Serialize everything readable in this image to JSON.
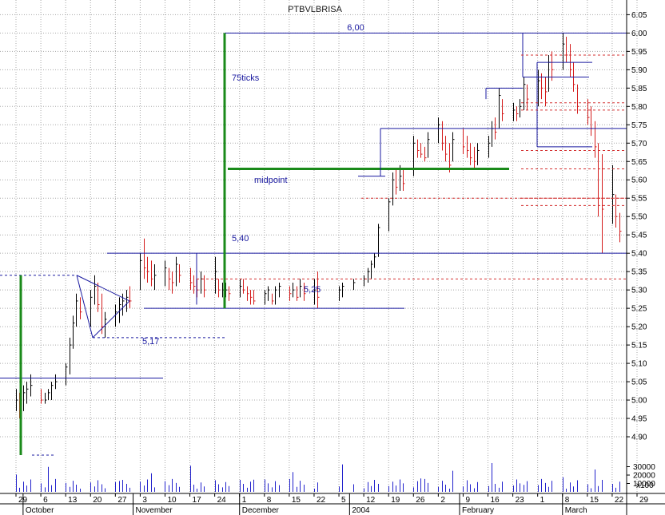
{
  "chart_data": {
    "type": "ohlc",
    "title": "PTBVLBRISA",
    "y_axis": {
      "ylim": [
        4.85,
        6.09
      ],
      "ticks": [
        "6.05",
        "6.00",
        "5.95",
        "5.90",
        "5.85",
        "5.80",
        "5.75",
        "5.70",
        "5.65",
        "5.60",
        "5.55",
        "5.50",
        "5.45",
        "5.40",
        "5.35",
        "5.30",
        "5.25",
        "5.20",
        "5.15",
        "5.10",
        "5.05",
        "5.00",
        "4.95",
        "4.90"
      ]
    },
    "volume_axis": {
      "ticks": [
        "30000",
        "20000",
        "10000"
      ],
      "unit_label": "x100"
    },
    "x_axis": {
      "day_ticks": [
        "29",
        "6",
        "13",
        "20",
        "27",
        "3",
        "10",
        "17",
        "24",
        "1",
        "8",
        "15",
        "22",
        "5",
        "12",
        "19",
        "26",
        "2",
        "9",
        "16",
        "23",
        "1",
        "8",
        "15",
        "22",
        "29"
      ],
      "month_labels": [
        "October",
        "November",
        "December",
        "2004",
        "February",
        "March"
      ]
    },
    "prices": [
      {
        "date": "2003-09-29",
        "high": 5.03,
        "low": 4.97,
        "close": 5.0
      },
      {
        "date": "2003-09-30",
        "high": 5.02,
        "low": 4.95,
        "close": 4.98
      },
      {
        "date": "2003-10-01",
        "high": 5.04,
        "low": 4.97,
        "close": 5.02
      },
      {
        "date": "2003-10-02",
        "high": 5.05,
        "low": 4.99,
        "close": 5.03
      },
      {
        "date": "2003-10-03",
        "high": 5.07,
        "low": 5.01,
        "close": 5.04
      },
      {
        "date": "2003-10-06",
        "high": 5.03,
        "low": 4.99,
        "close": 5.0
      },
      {
        "date": "2003-10-07",
        "high": 5.02,
        "low": 4.99,
        "close": 5.0
      },
      {
        "date": "2003-10-08",
        "high": 5.03,
        "low": 5.0,
        "close": 5.02
      },
      {
        "date": "2003-10-09",
        "high": 5.05,
        "low": 5.0,
        "close": 5.04
      },
      {
        "date": "2003-10-10",
        "high": 5.07,
        "low": 5.03,
        "close": 5.05
      },
      {
        "date": "2003-10-13",
        "high": 5.1,
        "low": 5.04,
        "close": 5.09
      },
      {
        "date": "2003-10-14",
        "high": 5.17,
        "low": 5.07,
        "close": 5.15
      },
      {
        "date": "2003-10-15",
        "high": 5.23,
        "low": 5.14,
        "close": 5.21
      },
      {
        "date": "2003-10-16",
        "high": 5.29,
        "low": 5.2,
        "close": 5.27
      },
      {
        "date": "2003-10-17",
        "high": 5.28,
        "low": 5.22,
        "close": 5.24
      },
      {
        "date": "2003-10-20",
        "high": 5.3,
        "low": 5.2,
        "close": 5.28
      },
      {
        "date": "2003-10-21",
        "high": 5.34,
        "low": 5.26,
        "close": 5.31
      },
      {
        "date": "2003-10-22",
        "high": 5.32,
        "low": 5.24,
        "close": 5.26
      },
      {
        "date": "2003-10-23",
        "high": 5.29,
        "low": 5.18,
        "close": 5.2
      },
      {
        "date": "2003-10-24",
        "high": 5.24,
        "low": 5.17,
        "close": 5.22
      },
      {
        "date": "2003-10-27",
        "high": 5.26,
        "low": 5.2,
        "close": 5.24
      },
      {
        "date": "2003-10-28",
        "high": 5.28,
        "low": 5.21,
        "close": 5.26
      },
      {
        "date": "2003-10-29",
        "high": 5.29,
        "low": 5.23,
        "close": 5.27
      },
      {
        "date": "2003-10-30",
        "high": 5.3,
        "low": 5.24,
        "close": 5.28
      },
      {
        "date": "2003-10-31",
        "high": 5.31,
        "low": 5.25,
        "close": 5.27
      },
      {
        "date": "2003-11-03",
        "high": 5.4,
        "low": 5.3,
        "close": 5.38
      },
      {
        "date": "2003-11-04",
        "high": 5.44,
        "low": 5.33,
        "close": 5.36
      },
      {
        "date": "2003-11-05",
        "high": 5.39,
        "low": 5.32,
        "close": 5.35
      },
      {
        "date": "2003-11-06",
        "high": 5.38,
        "low": 5.31,
        "close": 5.33
      },
      {
        "date": "2003-11-07",
        "high": 5.37,
        "low": 5.3,
        "close": 5.34
      },
      {
        "date": "2003-11-10",
        "high": 5.38,
        "low": 5.31,
        "close": 5.36
      },
      {
        "date": "2003-11-11",
        "high": 5.36,
        "low": 5.3,
        "close": 5.33
      },
      {
        "date": "2003-11-12",
        "high": 5.35,
        "low": 5.29,
        "close": 5.32
      },
      {
        "date": "2003-11-13",
        "high": 5.39,
        "low": 5.31,
        "close": 5.37
      },
      {
        "date": "2003-11-14",
        "high": 5.37,
        "low": 5.32,
        "close": 5.34
      },
      {
        "date": "2003-11-17",
        "high": 5.36,
        "low": 5.3,
        "close": 5.32
      },
      {
        "date": "2003-11-18",
        "high": 5.34,
        "low": 5.29,
        "close": 5.31
      },
      {
        "date": "2003-11-19",
        "high": 5.33,
        "low": 5.28,
        "close": 5.3
      },
      {
        "date": "2003-11-20",
        "high": 5.35,
        "low": 5.29,
        "close": 5.33
      },
      {
        "date": "2003-11-21",
        "high": 5.34,
        "low": 5.28,
        "close": 5.3
      },
      {
        "date": "2003-11-24",
        "high": 5.39,
        "low": 5.29,
        "close": 5.35
      },
      {
        "date": "2003-11-25",
        "high": 5.33,
        "low": 5.28,
        "close": 5.3
      },
      {
        "date": "2003-11-26",
        "high": 5.32,
        "low": 5.28,
        "close": 5.3
      },
      {
        "date": "2003-11-27",
        "high": 5.32,
        "low": 5.28,
        "close": 5.3
      },
      {
        "date": "2003-11-28",
        "high": 5.31,
        "low": 5.27,
        "close": 5.29
      },
      {
        "date": "2003-12-01",
        "high": 5.33,
        "low": 5.28,
        "close": 5.31
      },
      {
        "date": "2003-12-02",
        "high": 5.33,
        "low": 5.29,
        "close": 5.3
      },
      {
        "date": "2003-12-03",
        "high": 5.31,
        "low": 5.27,
        "close": 5.29
      },
      {
        "date": "2003-12-04",
        "high": 5.3,
        "low": 5.26,
        "close": 5.28
      },
      {
        "date": "2003-12-05",
        "high": 5.3,
        "low": 5.26,
        "close": 5.27
      },
      {
        "date": "2003-12-08",
        "high": 5.3,
        "low": 5.26,
        "close": 5.29
      },
      {
        "date": "2003-12-09",
        "high": 5.31,
        "low": 5.27,
        "close": 5.3
      },
      {
        "date": "2003-12-10",
        "high": 5.29,
        "low": 5.26,
        "close": 5.27
      },
      {
        "date": "2003-12-11",
        "high": 5.31,
        "low": 5.26,
        "close": 5.3
      },
      {
        "date": "2003-12-12",
        "high": 5.32,
        "low": 5.28,
        "close": 5.31
      },
      {
        "date": "2003-12-15",
        "high": 5.31,
        "low": 5.27,
        "close": 5.29
      },
      {
        "date": "2003-12-16",
        "high": 5.32,
        "low": 5.28,
        "close": 5.3
      },
      {
        "date": "2003-12-17",
        "high": 5.31,
        "low": 5.27,
        "close": 5.28
      },
      {
        "date": "2003-12-18",
        "high": 5.33,
        "low": 5.28,
        "close": 5.31
      },
      {
        "date": "2003-12-19",
        "high": 5.32,
        "low": 5.27,
        "close": 5.29
      },
      {
        "date": "2003-12-22",
        "high": 5.33,
        "low": 5.26,
        "close": 5.3
      },
      {
        "date": "2003-12-23",
        "high": 5.35,
        "low": 5.25,
        "close": 5.28
      },
      {
        "date": "2003-12-29",
        "high": 5.31,
        "low": 5.27,
        "close": 5.3
      },
      {
        "date": "2003-12-30",
        "high": 5.32,
        "low": 5.28,
        "close": 5.31
      },
      {
        "date": "2004-01-02",
        "high": 5.33,
        "low": 5.3,
        "close": 5.32
      },
      {
        "date": "2004-01-05",
        "high": 5.34,
        "low": 5.31,
        "close": 5.33
      },
      {
        "date": "2004-01-06",
        "high": 5.36,
        "low": 5.32,
        "close": 5.35
      },
      {
        "date": "2004-01-07",
        "high": 5.38,
        "low": 5.33,
        "close": 5.37
      },
      {
        "date": "2004-01-08",
        "high": 5.4,
        "low": 5.36,
        "close": 5.39
      },
      {
        "date": "2004-01-09",
        "high": 5.48,
        "low": 5.39,
        "close": 5.47
      },
      {
        "date": "2004-01-12",
        "high": 5.55,
        "low": 5.46,
        "close": 5.54
      },
      {
        "date": "2004-01-13",
        "high": 5.62,
        "low": 5.53,
        "close": 5.6
      },
      {
        "date": "2004-01-14",
        "high": 5.63,
        "low": 5.56,
        "close": 5.58
      },
      {
        "date": "2004-01-15",
        "high": 5.64,
        "low": 5.57,
        "close": 5.61
      },
      {
        "date": "2004-01-16",
        "high": 5.63,
        "low": 5.57,
        "close": 5.59
      },
      {
        "date": "2004-01-19",
        "high": 5.72,
        "low": 5.61,
        "close": 5.7
      },
      {
        "date": "2004-01-20",
        "high": 5.71,
        "low": 5.66,
        "close": 5.68
      },
      {
        "date": "2004-01-21",
        "high": 5.7,
        "low": 5.66,
        "close": 5.67
      },
      {
        "date": "2004-01-22",
        "high": 5.69,
        "low": 5.65,
        "close": 5.66
      },
      {
        "date": "2004-01-23",
        "high": 5.73,
        "low": 5.66,
        "close": 5.71
      },
      {
        "date": "2004-01-26",
        "high": 5.77,
        "low": 5.7,
        "close": 5.75
      },
      {
        "date": "2004-01-27",
        "high": 5.76,
        "low": 5.68,
        "close": 5.7
      },
      {
        "date": "2004-01-28",
        "high": 5.72,
        "low": 5.65,
        "close": 5.67
      },
      {
        "date": "2004-01-29",
        "high": 5.7,
        "low": 5.62,
        "close": 5.64
      },
      {
        "date": "2004-01-30",
        "high": 5.73,
        "low": 5.65,
        "close": 5.71
      },
      {
        "date": "2004-02-02",
        "high": 5.74,
        "low": 5.67,
        "close": 5.69
      },
      {
        "date": "2004-02-03",
        "high": 5.72,
        "low": 5.66,
        "close": 5.68
      },
      {
        "date": "2004-02-04",
        "high": 5.7,
        "low": 5.64,
        "close": 5.66
      },
      {
        "date": "2004-02-05",
        "high": 5.69,
        "low": 5.63,
        "close": 5.65
      },
      {
        "date": "2004-02-06",
        "high": 5.7,
        "low": 5.64,
        "close": 5.68
      },
      {
        "date": "2004-02-09",
        "high": 5.72,
        "low": 5.66,
        "close": 5.7
      },
      {
        "date": "2004-02-10",
        "high": 5.76,
        "low": 5.69,
        "close": 5.74
      },
      {
        "date": "2004-02-11",
        "high": 5.77,
        "low": 5.71,
        "close": 5.73
      },
      {
        "date": "2004-02-12",
        "high": 5.85,
        "low": 5.74,
        "close": 5.83
      },
      {
        "date": "2004-02-13",
        "high": 5.82,
        "low": 5.76,
        "close": 5.78
      },
      {
        "date": "2004-02-16",
        "high": 5.81,
        "low": 5.76,
        "close": 5.79
      },
      {
        "date": "2004-02-17",
        "high": 5.8,
        "low": 5.76,
        "close": 5.78
      },
      {
        "date": "2004-02-18",
        "high": 5.82,
        "low": 5.77,
        "close": 5.8
      },
      {
        "date": "2004-02-19",
        "high": 5.88,
        "low": 5.79,
        "close": 5.86
      },
      {
        "date": "2004-02-20",
        "high": 5.86,
        "low": 5.79,
        "close": 5.82
      },
      {
        "date": "2004-02-23",
        "high": 5.9,
        "low": 5.8,
        "close": 5.87
      },
      {
        "date": "2004-02-24",
        "high": 5.89,
        "low": 5.82,
        "close": 5.85
      },
      {
        "date": "2004-02-25",
        "high": 5.88,
        "low": 5.8,
        "close": 5.84
      },
      {
        "date": "2004-02-26",
        "high": 5.94,
        "low": 5.84,
        "close": 5.92
      },
      {
        "date": "2004-02-27",
        "high": 5.95,
        "low": 5.87,
        "close": 5.9
      },
      {
        "date": "2004-03-01",
        "high": 6.0,
        "low": 5.9,
        "close": 5.97
      },
      {
        "date": "2004-03-02",
        "high": 5.99,
        "low": 5.92,
        "close": 5.94
      },
      {
        "date": "2004-03-03",
        "high": 5.97,
        "low": 5.88,
        "close": 5.9
      },
      {
        "date": "2004-03-04",
        "high": 5.92,
        "low": 5.84,
        "close": 5.86
      },
      {
        "date": "2004-03-05",
        "high": 5.86,
        "low": 5.78,
        "close": 5.8
      },
      {
        "date": "2004-03-08",
        "high": 5.82,
        "low": 5.75,
        "close": 5.77
      },
      {
        "date": "2004-03-09",
        "high": 5.8,
        "low": 5.72,
        "close": 5.74
      },
      {
        "date": "2004-03-10",
        "high": 5.76,
        "low": 5.66,
        "close": 5.69
      },
      {
        "date": "2004-03-11",
        "high": 5.7,
        "low": 5.5,
        "close": 5.55
      },
      {
        "date": "2004-03-12",
        "high": 5.67,
        "low": 5.4,
        "close": 5.52
      },
      {
        "date": "2004-03-15",
        "high": 5.64,
        "low": 5.48,
        "close": 5.56
      },
      {
        "date": "2004-03-16",
        "high": 5.56,
        "low": 5.47,
        "close": 5.5
      },
      {
        "date": "2004-03-17",
        "high": 5.51,
        "low": 5.43,
        "close": 5.46
      }
    ],
    "annotations": {
      "labels": [
        "6,00",
        "75ticks",
        "midpoint",
        "5,40",
        "5,25",
        "5,17"
      ],
      "resistance_level": 6.0,
      "midpoint_level": 5.63,
      "breakout_level": 5.4,
      "support_level": 5.25,
      "triangle_low": 5.17
    },
    "colors": {
      "up_bar": "#000000",
      "down_bar": "#d41c1c",
      "trendline": "#1a1aa0",
      "measure_line": "#1a8a1a",
      "dashed_level": "#d43030",
      "volume": "#2222cc",
      "grid": "#a8a8a8"
    }
  }
}
